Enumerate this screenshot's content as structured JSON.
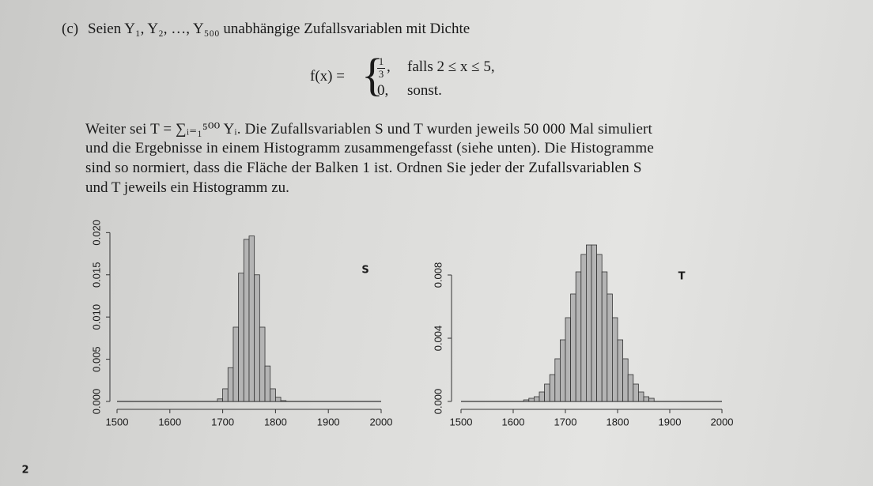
{
  "header": {
    "label": "(c)",
    "text": "Seien Y₁, Y₂, …, Y₅₀₀ unabhängige Zufallsvariablen mit Dichte"
  },
  "formula": {
    "lhs": "f(x) =",
    "case1": {
      "numerator": "1",
      "denominator": "3",
      "condition": "falls 2 ≤ x ≤ 5,"
    },
    "case2": {
      "value": "0,",
      "condition": "sonst."
    }
  },
  "paragraph_lines": [
    "Weiter sei T = ∑ᵢ₌₁⁵⁰⁰ Yᵢ. Die Zufallsvariablen S und T wurden jeweils 50 000 Mal simuliert",
    "und die Ergebnisse in einem Histogramm zusammengefasst (siehe unten). Die Histogramme",
    "sind so normiert, dass die Fläche der Balken 1 ist. Ordnen Sie jeder der Zufallsvariablen S",
    "und T jeweils ein Histogramm zu."
  ],
  "handwriting": {
    "left_label": "S",
    "right_label": "T",
    "page_number": "2"
  },
  "chart_data": [
    {
      "type": "histogram",
      "color": "#b4b4b4",
      "bins": [
        1690,
        1700,
        1710,
        1720,
        1730,
        1740,
        1750,
        1760,
        1770,
        1780,
        1790,
        1800,
        1810,
        1820
      ],
      "values": [
        0.0003,
        0.0015,
        0.004,
        0.0088,
        0.0152,
        0.0192,
        0.0196,
        0.015,
        0.0088,
        0.0042,
        0.0015,
        0.0005,
        0.0001
      ],
      "xlim": [
        1500,
        2000
      ],
      "ylim": [
        0,
        0.0205
      ],
      "xticks": [
        1500,
        1600,
        1700,
        1800,
        1900,
        2000
      ],
      "yticks": [
        {
          "value": 0,
          "label": "0.000"
        },
        {
          "value": 0.005,
          "label": "0.005"
        },
        {
          "value": 0.01,
          "label": "0.010"
        },
        {
          "value": 0.015,
          "label": "0.015"
        },
        {
          "value": 0.02,
          "label": "0.020"
        }
      ]
    },
    {
      "type": "histogram",
      "color": "#b4b4b4",
      "bins": [
        1620,
        1630,
        1640,
        1650,
        1660,
        1670,
        1680,
        1690,
        1700,
        1710,
        1720,
        1730,
        1740,
        1750,
        1760,
        1770,
        1780,
        1790,
        1800,
        1810,
        1820,
        1830,
        1840,
        1850,
        1860,
        1870
      ],
      "values": [
        0.0001,
        0.0002,
        0.0003,
        0.0006,
        0.0011,
        0.0017,
        0.0027,
        0.0039,
        0.0053,
        0.0068,
        0.0082,
        0.0093,
        0.0099,
        0.0099,
        0.0093,
        0.0082,
        0.0068,
        0.0053,
        0.0039,
        0.0027,
        0.0017,
        0.0011,
        0.0006,
        0.0003,
        0.0002
      ],
      "xlim": [
        1500,
        2000
      ],
      "ylim": [
        0,
        0.0105
      ],
      "xticks": [
        1500,
        1600,
        1700,
        1800,
        1900,
        2000
      ],
      "yticks": [
        {
          "value": 0,
          "label": "0.000"
        },
        {
          "value": 0.004,
          "label": "0.004"
        },
        {
          "value": 0.008,
          "label": "0.008"
        }
      ]
    }
  ]
}
